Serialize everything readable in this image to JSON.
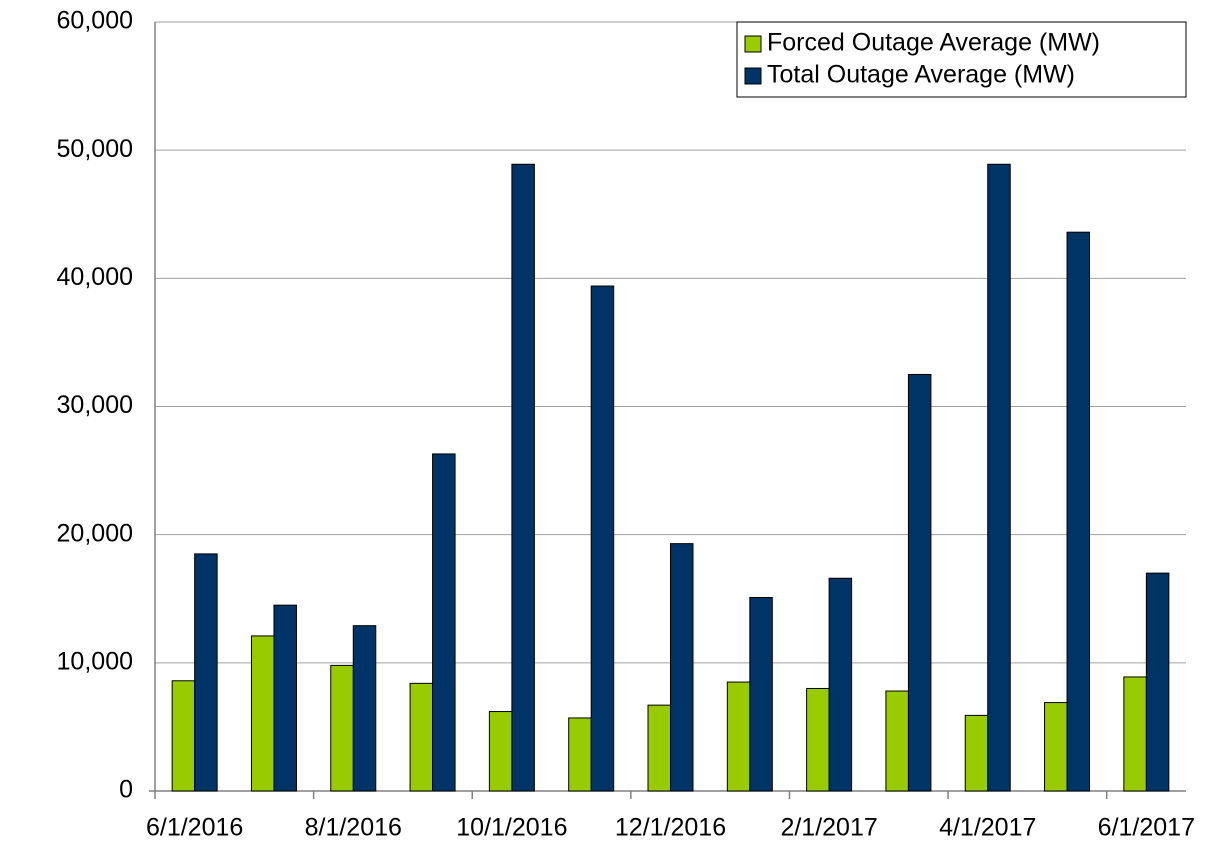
{
  "chart_data": {
    "type": "bar",
    "categories": [
      "6/1/2016",
      null,
      "8/1/2016",
      null,
      "10/1/2016",
      null,
      "12/1/2016",
      null,
      "2/1/2017",
      null,
      "4/1/2017",
      null,
      "6/1/2017"
    ],
    "series": [
      {
        "name": "Forced Outage Average (MW)",
        "color": "#99cc00",
        "values": [
          8600,
          12100,
          9800,
          8400,
          6200,
          5700,
          6700,
          8500,
          8000,
          7800,
          5900,
          6900,
          8900
        ]
      },
      {
        "name": "Total Outage Average (MW)",
        "color": "#003366",
        "values": [
          18500,
          14500,
          12900,
          26300,
          48900,
          39400,
          19300,
          15100,
          16600,
          32500,
          48900,
          43600,
          17000
        ]
      }
    ],
    "ylim": [
      0,
      60000
    ],
    "yticks": [
      0,
      {
        "value": 10000,
        "label": "10,000"
      },
      {
        "value": 20000,
        "label": "20,000"
      },
      {
        "value": 30000,
        "label": "30,000"
      },
      {
        "value": 40000,
        "label": "40,000"
      },
      {
        "value": 50000,
        "label": "50,000"
      },
      {
        "value": 60000,
        "label": "60,000"
      }
    ],
    "grid": true,
    "legend": "top-right"
  }
}
